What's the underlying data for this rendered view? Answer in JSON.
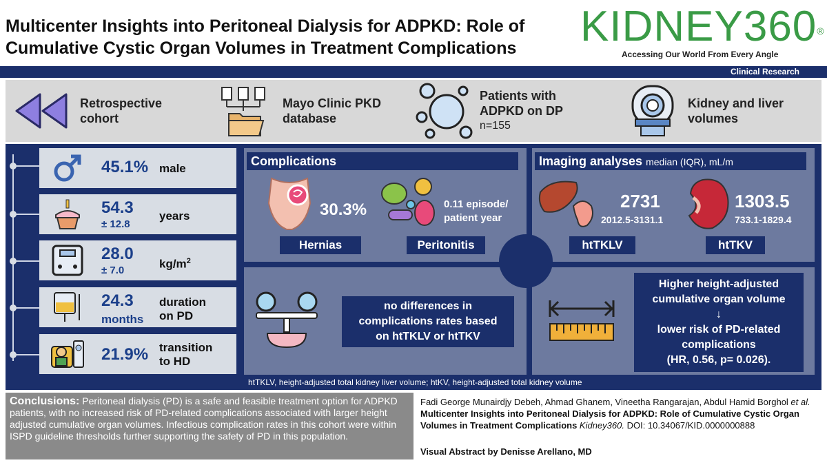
{
  "header": {
    "title_line1": "Multicenter Insights into Peritoneal Dialysis for ADPKD: Role of",
    "title_line2": "Cumulative Cystic Organ Volumes in Treatment Complications",
    "brand": "KIDNEY360",
    "brand_mark": "®",
    "tagline": "Accessing Our World From Every Angle",
    "category": "Clinical Research"
  },
  "band": {
    "items": [
      {
        "line1": "Retrospective",
        "line2": "cohort",
        "icon": "rewind-icon"
      },
      {
        "line1": "Mayo Clinic PKD",
        "line2": "database",
        "icon": "folder-documents-icon"
      },
      {
        "line1": "Patients with",
        "line2": "ADPKD on DP",
        "sub": "n=155",
        "icon": "bubbles-icon"
      },
      {
        "line1": "Kidney and liver",
        "line2": "volumes",
        "icon": "mri-scanner-icon"
      }
    ]
  },
  "stats": [
    {
      "value": "45.1%",
      "label": "male",
      "icon": "male-symbol-icon"
    },
    {
      "value": "54.3",
      "sub": "± 12.8",
      "label": "years",
      "icon": "birthday-cake-icon"
    },
    {
      "value": "28.0",
      "sub": "± 7.0",
      "label": "kg/m",
      "label_sup": "2",
      "icon": "scale-icon"
    },
    {
      "value": "24.3",
      "sub": "months",
      "label1": "duration",
      "label2": "on PD",
      "icon": "dialysis-bag-icon"
    },
    {
      "value": "21.9%",
      "label1": "transition",
      "label2": "to HD",
      "icon": "hemodialysis-icon"
    }
  ],
  "complications": {
    "heading": "Complications",
    "hernia_value": "30.3%",
    "hernia_label": "Hernias",
    "peritonitis_rate_line1": "0.11 episode/",
    "peritonitis_rate_line2": "patient year",
    "peritonitis_label": "Peritonitis"
  },
  "imaging": {
    "heading": "Imaging analyses",
    "heading_sub": "median (IQR), mL/m",
    "htklv_value": "2731",
    "htklv_range": "2012.5-3131.1",
    "htklv_label": "htTKLV",
    "htkv_value": "1303.5",
    "htkv_range": "733.1-1829.4",
    "htkv_label": "htTKV"
  },
  "nodiff": {
    "line1": "no differences in",
    "line2": "complications rates based",
    "line3": "on htTKLV or htTKV"
  },
  "risk": {
    "line1": "Higher height-adjusted",
    "line2": "cumulative organ volume",
    "arrow": "↓",
    "line3": "lower risk of PD-related",
    "line4": "complications",
    "line5": "(HR, 0.56, p= 0.026)."
  },
  "footnote": "htTKLV, height-adjusted total kidney liver volume; htKV, height-adjusted total kidney volume",
  "conclusions": {
    "label": "Conclusions:",
    "text": " Peritoneal dialysis (PD) is a safe and feasible treatment option for ADPKD patients, with no increased risk of PD-related complications associated with larger height adjusted cumulative organ volumes. Infectious complication rates in this cohort were within ISPD guideline thresholds further supporting the safety of PD in this population."
  },
  "citation": {
    "authors": "Fadi George Munairdjy Debeh, Ahmad Ghanem, Vineetha Rangarajan, Abdul Hamid Borghol ",
    "etal": "et al.",
    "title": " Multicenter Insights into Peritoneal Dialysis for ADPKD: Role of Cumulative Cystic Organ Volumes in Treatment Complications ",
    "journal": "Kidney360.",
    "doi": " DOI: 10.34067/KID.0000000888"
  },
  "credit": "Visual Abstract by Denisse Arellano, MD",
  "colors": {
    "navy": "#1b2f6b",
    "brand_green": "#3a9b46",
    "panel": "#6d7a9f",
    "stat_bg": "#d8dde4"
  }
}
